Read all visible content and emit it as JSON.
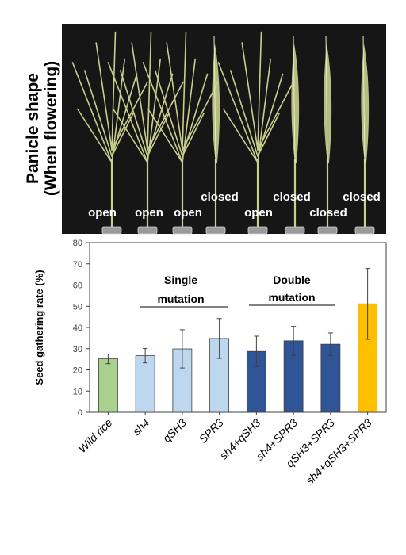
{
  "photo_panel": {
    "ylabel_line1": "Panicle shape",
    "ylabel_line2": "(When flowering)",
    "labels": [
      "open",
      "open",
      "open",
      "closed",
      "open",
      "closed",
      "closed",
      "closed"
    ],
    "background_color": "#161616",
    "panicle_color": "#c8cf8e"
  },
  "chart_data": {
    "type": "bar",
    "categories": [
      "Wild rice",
      "sh4",
      "qSH3",
      "SPR3",
      "sh4+qSH3",
      "sh4+SPR3",
      "qSH3+SPR3",
      "sh4+qSH3+SPR3"
    ],
    "values": [
      25.2,
      26.7,
      29.9,
      34.8,
      28.7,
      33.7,
      32.1,
      51.1
    ],
    "error": [
      2.3,
      3.4,
      9.0,
      9.4,
      7.2,
      6.8,
      5.3,
      16.7
    ],
    "colors": [
      "#a9d18e",
      "#bdd7ee",
      "#bdd7ee",
      "#bdd7ee",
      "#2f5597",
      "#2f5597",
      "#2f5597",
      "#ffc000"
    ],
    "xlabel": "",
    "ylabel": "Seed gathering rate (%)",
    "ylim": [
      0,
      80
    ],
    "yticks": [
      0,
      10,
      20,
      30,
      40,
      50,
      60,
      70,
      80
    ],
    "grid": false,
    "annotations": [
      {
        "line1": "Single",
        "line2": "mutation"
      },
      {
        "line1": "Double",
        "line2": "mutation"
      }
    ]
  }
}
